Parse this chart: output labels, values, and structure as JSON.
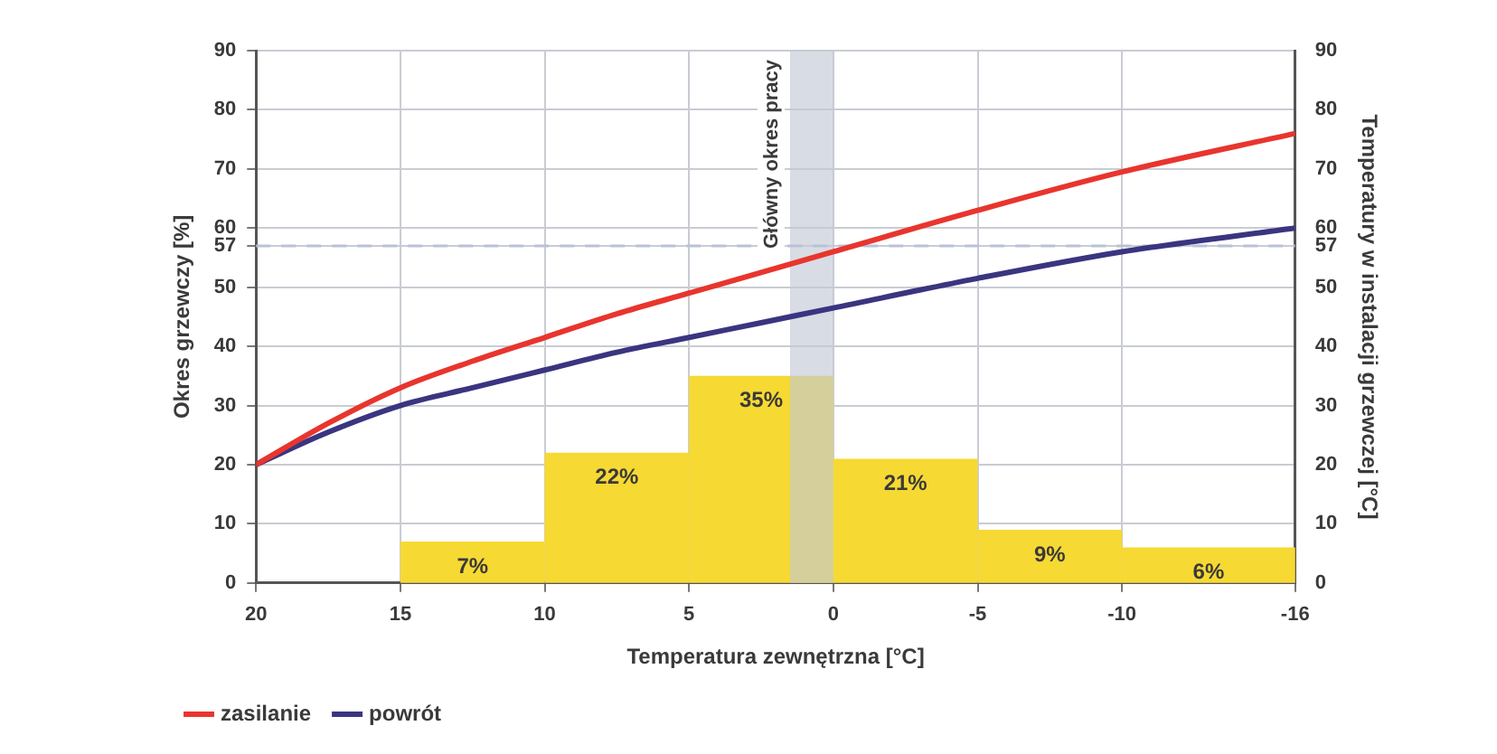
{
  "chart_data": {
    "type": "line",
    "xlabel": "Temperatura zewnętrzna [°C]",
    "ylabel": "Okres grzewczy [%]",
    "y2label": "Temperatury w instalacji grzewczej [°C]",
    "xlim": [
      20,
      -16
    ],
    "xticks": [
      20,
      15,
      10,
      5,
      0,
      -5,
      -10,
      -16
    ],
    "ylim": [
      0,
      90
    ],
    "yticks": [
      0,
      10,
      20,
      30,
      40,
      50,
      57,
      60,
      70,
      80,
      90
    ],
    "y2lim": [
      0,
      90
    ],
    "y2ticks": [
      0,
      10,
      20,
      30,
      40,
      50,
      57,
      60,
      70,
      80,
      90
    ],
    "series": [
      {
        "type": "histogram",
        "color": "#f7d933",
        "bins": [
          15,
          10,
          5,
          0,
          -5,
          -10,
          -16
        ],
        "values": [
          7,
          22,
          35,
          21,
          9,
          6
        ],
        "value_labels": [
          "7%",
          "22%",
          "35%",
          "21%",
          "9%",
          "6%"
        ]
      },
      {
        "name": "zasilanie",
        "color": "#e8352e",
        "x": [
          20,
          17.5,
          15,
          12.5,
          10,
          7.5,
          5,
          2.5,
          0,
          -5,
          -10,
          -16
        ],
        "values": [
          20,
          27,
          33,
          37.5,
          41.5,
          45.5,
          49,
          52.5,
          56,
          63,
          69.5,
          76
        ]
      },
      {
        "name": "powrót",
        "color": "#3a3580",
        "x": [
          20,
          17.5,
          15,
          12.5,
          10,
          7.5,
          5,
          2.5,
          0,
          -5,
          -10,
          -16
        ],
        "values": [
          20,
          25.5,
          30,
          33,
          36,
          39,
          41.5,
          44,
          46.5,
          51.5,
          56,
          60
        ]
      }
    ],
    "ref_lines": [
      {
        "axis": "y2",
        "value": 57,
        "color": "#b9c1d9",
        "line_style": "dashed"
      }
    ],
    "bands": [
      {
        "axis": "x",
        "from": 1.5,
        "to": 0,
        "label": "Główny okres pracy",
        "color": "#c3c9d6"
      }
    ],
    "grid": true,
    "legend": "bottom left",
    "marker": "none",
    "line_style": "solid"
  }
}
